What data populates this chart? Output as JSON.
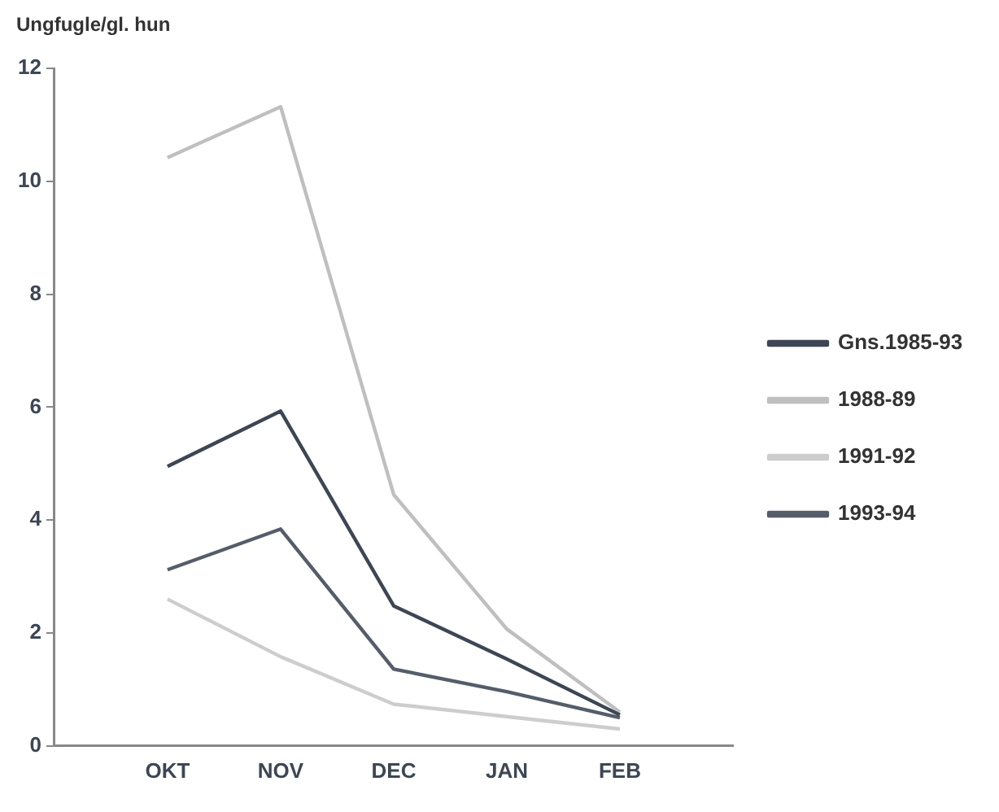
{
  "chart_data": {
    "type": "line",
    "ylabel": "Ungfugle/gl. hun",
    "categories": [
      null,
      "OKT",
      "NOV",
      "DEC",
      "JAN",
      "FEB",
      null
    ],
    "series": [
      {
        "name": "Gns.1985-93",
        "color": "#3d4654",
        "values": [
          null,
          4.95,
          5.93,
          2.48,
          1.54,
          0.55,
          null
        ]
      },
      {
        "name": "1988-89",
        "color": "#bfbfbf",
        "values": [
          null,
          10.42,
          11.32,
          4.45,
          2.07,
          0.6,
          null
        ]
      },
      {
        "name": "1991-92",
        "color": "#cdcdcd",
        "values": [
          null,
          2.6,
          1.58,
          0.74,
          0.52,
          0.3,
          null
        ]
      },
      {
        "name": "1993-94",
        "color": "#555d6a",
        "values": [
          null,
          3.12,
          3.84,
          1.36,
          0.96,
          0.5,
          null
        ]
      }
    ],
    "ylim": [
      0,
      12
    ],
    "yticks": [
      0,
      2,
      4,
      6,
      8,
      10,
      12
    ],
    "grid": false,
    "legend": "right",
    "marker": "none"
  }
}
